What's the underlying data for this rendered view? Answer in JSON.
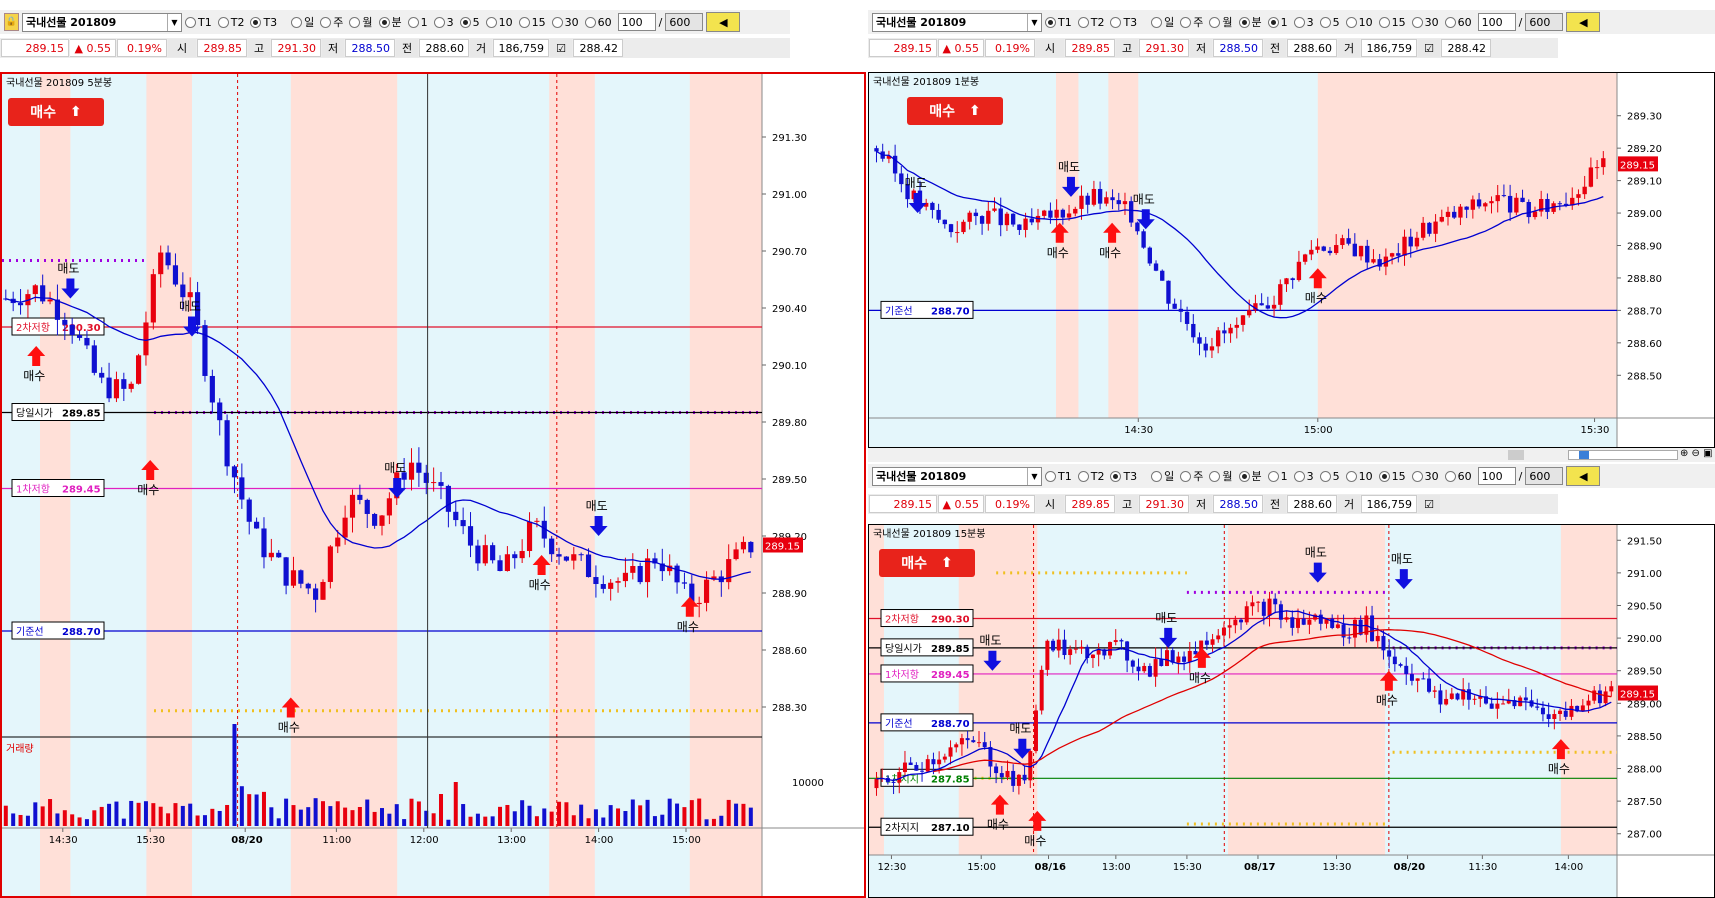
{
  "windows": [
    {
      "id": "w1",
      "symbol": "국내선물 201809",
      "periods": [
        "T1",
        "T2",
        "T3"
      ],
      "period_selected": "T3",
      "units": [
        "일",
        "주",
        "월",
        "분"
      ],
      "unit_selected": "분",
      "intervals": [
        "1",
        "3",
        "5",
        "10",
        "15",
        "30",
        "60"
      ],
      "interval_selected": "5",
      "count": "100",
      "total": "600",
      "quote": {
        "price": "289.15",
        "change": "▲ 0.55",
        "pct": "0.19%",
        "open_label": "시",
        "open": "289.85",
        "high_label": "고",
        "high": "291.30",
        "low_label": "저",
        "low": "288.50",
        "prev_label": "전",
        "prev": "288.60",
        "vol_label": "거",
        "volume": "186,759",
        "extra": "288.42"
      },
      "chart_title": "국내선물 201809  5분봉",
      "buy_button": "매수",
      "y_ticks": [
        "291.30",
        "291.00",
        "290.70",
        "290.40",
        "290.10",
        "289.80",
        "289.50",
        "289.20",
        "288.90",
        "288.60",
        "288.30"
      ],
      "price_tag": "289.15",
      "x_ticks": [
        "14:30",
        "15:30",
        "08/20",
        "11:00",
        "12:00",
        "13:00",
        "14:00",
        "15:00"
      ],
      "lines": [
        {
          "label": "2차저항",
          "value": "290.30",
          "color": "#e0102a"
        },
        {
          "label": "당일시가",
          "value": "289.85",
          "color": "#000000"
        },
        {
          "label": "1차저항",
          "value": "289.45",
          "color": "#e020c0"
        },
        {
          "label": "기준선",
          "value": "288.70",
          "color": "#0000d0"
        }
      ],
      "volume_title": "거래량",
      "volume_tick": "10000",
      "signals": {
        "buy": "매수",
        "sell": "매도",
        "sell_cut": "도"
      }
    },
    {
      "id": "w2",
      "symbol": "국내선물 201809",
      "period_selected": "T1",
      "interval_selected": "1",
      "count": "100",
      "total": "600",
      "chart_title": "국내선물 201809  1분봉",
      "y_ticks": [
        "289.30",
        "289.20",
        "289.10",
        "289.00",
        "288.90",
        "288.80",
        "288.70",
        "288.60",
        "288.50"
      ],
      "price_tag": "289.15",
      "x_ticks": [
        "14:30",
        "15:00",
        "15:30"
      ],
      "lines": [
        {
          "label": "기준선",
          "value": "288.70",
          "color": "#0000d0"
        }
      ]
    },
    {
      "id": "w3",
      "symbol": "국내선물 201809",
      "period_selected": "T3",
      "interval_selected": "15",
      "count": "100",
      "total": "600",
      "chart_title": "국내선물 201809  15분봉",
      "y_ticks": [
        "291.50",
        "291.00",
        "290.50",
        "290.00",
        "289.50",
        "289.00",
        "288.50",
        "288.00",
        "287.50",
        "287.00"
      ],
      "price_tag": "289.15",
      "x_ticks": [
        "12:30",
        "15:00",
        "08/16",
        "13:00",
        "15:30",
        "08/17",
        "13:30",
        "08/20",
        "11:30",
        "14:00"
      ],
      "lines": [
        {
          "label": "2차저항",
          "value": "290.30",
          "color": "#e0102a"
        },
        {
          "label": "당일시가",
          "value": "289.85",
          "color": "#000000"
        },
        {
          "label": "1차저항",
          "value": "289.45",
          "color": "#e020c0"
        },
        {
          "label": "기준선",
          "value": "288.70",
          "color": "#0000d0"
        },
        {
          "label": "1차지지",
          "value": "287.85",
          "color": "#008000"
        },
        {
          "label": "2차지지",
          "value": "287.10",
          "color": "#000000"
        }
      ]
    }
  ],
  "colors": {
    "up": "#e8000e",
    "down": "#1010d0",
    "ma": "#0000d0",
    "ma_red": "#e00000",
    "band_red": "#ffe0d8",
    "band_blue": "#e4f6fb"
  }
}
